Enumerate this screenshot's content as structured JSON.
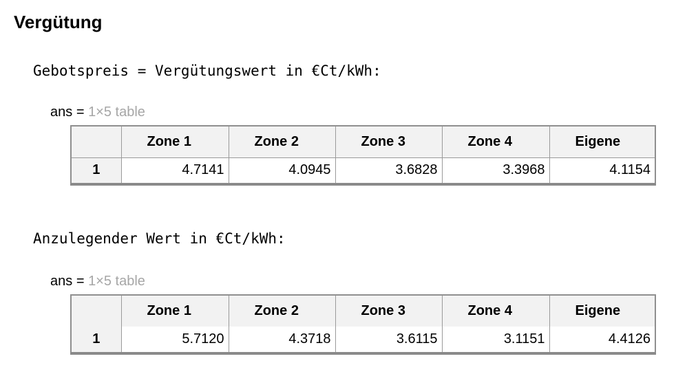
{
  "section": {
    "title": "Vergütung"
  },
  "outputs": [
    {
      "heading": "Gebotspreis = Vergütungswert in €Ct/kWh:",
      "ans_name": "ans",
      "ans_eq": "=",
      "ans_type": "1×5 table",
      "table": {
        "columns": [
          "Zone 1",
          "Zone 2",
          "Zone 3",
          "Zone 4",
          "Eigene"
        ],
        "rows": [
          {
            "label": "1",
            "values": [
              "4.7141",
              "4.0945",
              "3.6828",
              "3.3968",
              "4.1154"
            ]
          }
        ]
      }
    },
    {
      "heading": "Anzulegender Wert in €Ct/kWh:",
      "ans_name": "ans",
      "ans_eq": "=",
      "ans_type": "1×5 table",
      "table": {
        "columns": [
          "Zone 1",
          "Zone 2",
          "Zone 3",
          "Zone 4",
          "Eigene"
        ],
        "rows": [
          {
            "label": "1",
            "values": [
              "5.7120",
              "4.3718",
              "3.6115",
              "3.1151",
              "4.4126"
            ]
          }
        ]
      }
    }
  ]
}
